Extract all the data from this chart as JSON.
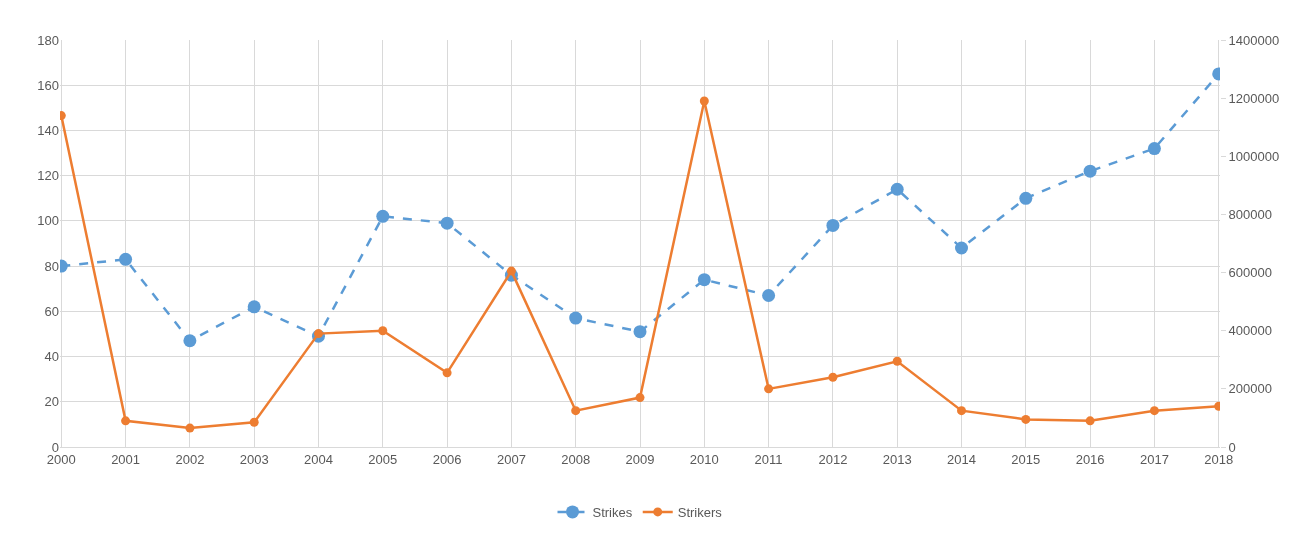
{
  "chart_data": {
    "type": "line",
    "categories": [
      "2000",
      "2001",
      "2002",
      "2003",
      "2004",
      "2005",
      "2006",
      "2007",
      "2008",
      "2009",
      "2010",
      "2011",
      "2012",
      "2013",
      "2014",
      "2015",
      "2016",
      "2017",
      "2018"
    ],
    "series": [
      {
        "name": "Strikes",
        "color": "#5b9bd5",
        "line_style": "dashed",
        "values": [
          80,
          83,
          47,
          62,
          49,
          102,
          99,
          76,
          57,
          51,
          74,
          67,
          98,
          114,
          88,
          110,
          122,
          132,
          165
        ]
      },
      {
        "name": "Strikers",
        "color": "#ed7d31",
        "line_style": "solid",
        "axis": "y2",
        "values": [
          1140000,
          90000,
          65000,
          85000,
          390000,
          400000,
          255000,
          605000,
          125000,
          170000,
          1190000,
          200000,
          240000,
          295000,
          125000,
          95000,
          90000,
          125000,
          140000
        ]
      }
    ],
    "ylim": [
      0,
      180
    ],
    "yticks": [
      0,
      20,
      40,
      60,
      80,
      100,
      120,
      140,
      160,
      180
    ],
    "y2lim": [
      0,
      1400000
    ],
    "y2ticks": [
      0,
      200000,
      400000,
      600000,
      800000,
      1000000,
      1200000,
      1400000
    ],
    "grid": true,
    "legend": "bottom",
    "marker": "circle"
  }
}
